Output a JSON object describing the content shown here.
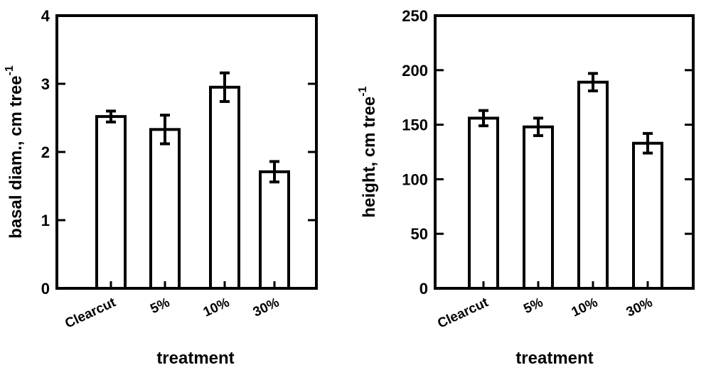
{
  "chart_data": [
    {
      "type": "bar",
      "title": "",
      "categories": [
        "Clearcut",
        "5%",
        "10%",
        "30%"
      ],
      "values": [
        2.52,
        2.33,
        2.95,
        1.71
      ],
      "errors": [
        0.08,
        0.21,
        0.21,
        0.15
      ],
      "xlabel": "treatment",
      "ylabel": "basal diam., cm tree",
      "ylabel_superscript": "-1",
      "ylim": [
        0,
        4
      ],
      "yticks": [
        0,
        1,
        2,
        3,
        4
      ],
      "ytick_labels": [
        "0",
        "1",
        "2",
        "3",
        "4"
      ],
      "grid": false,
      "legend": "none"
    },
    {
      "type": "bar",
      "title": "",
      "categories": [
        "Clearcut",
        "5%",
        "10%",
        "30%"
      ],
      "values": [
        156,
        148,
        189,
        133
      ],
      "errors": [
        7,
        8,
        8,
        9
      ],
      "xlabel": "treatment",
      "ylabel": "height, cm tree",
      "ylabel_superscript": "-1",
      "ylim": [
        0,
        250
      ],
      "yticks": [
        0,
        50,
        100,
        150,
        200,
        250
      ],
      "ytick_labels": [
        "0",
        "50",
        "100",
        "150",
        "200",
        "250"
      ],
      "grid": false,
      "legend": "none"
    }
  ]
}
